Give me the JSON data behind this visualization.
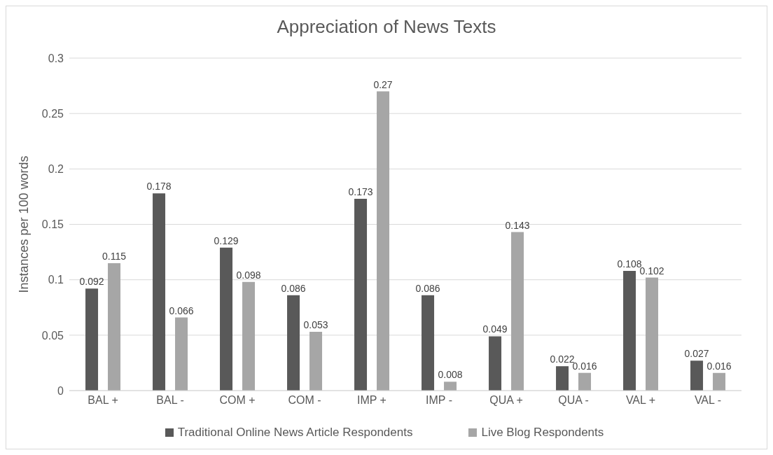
{
  "chart_data": {
    "type": "bar",
    "title": "Appreciation of News Texts",
    "ylabel": "Instances per 100 words",
    "categories": [
      "BAL +",
      "BAL -",
      "COM +",
      "COM -",
      "IMP +",
      "IMP -",
      "QUA +",
      "QUA -",
      "VAL +",
      "VAL -"
    ],
    "series": [
      {
        "name": "Traditional Online News Article Respondents",
        "color": "#595959",
        "values": [
          0.092,
          0.178,
          0.129,
          0.086,
          0.173,
          0.086,
          0.049,
          0.022,
          0.108,
          0.027
        ]
      },
      {
        "name": "Live Blog Respondents",
        "color": "#a6a6a6",
        "values": [
          0.115,
          0.066,
          0.098,
          0.053,
          0.27,
          0.008,
          0.143,
          0.016,
          0.102,
          0.016
        ]
      }
    ],
    "ylim": [
      0,
      0.3
    ],
    "yticks": [
      0,
      0.05,
      0.1,
      0.15,
      0.2,
      0.25,
      0.3
    ],
    "grid": "y",
    "legend": "bottom",
    "data_labels": true
  }
}
